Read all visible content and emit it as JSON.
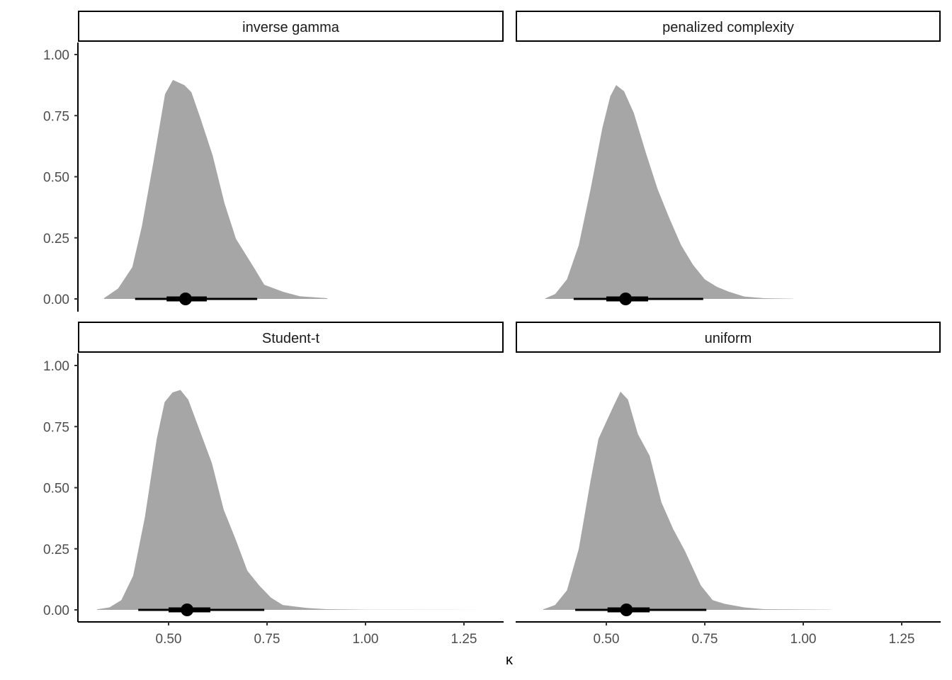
{
  "chart_data": {
    "type": "area",
    "title": "",
    "xlabel": "κ",
    "ylabel": "",
    "xlim": [
      0.27,
      1.35
    ],
    "ylim": [
      0,
      1
    ],
    "x_ticks": [
      "0.50",
      "0.75",
      "1.00",
      "1.25"
    ],
    "x_tick_values": [
      0.5,
      0.75,
      1.0,
      1.25
    ],
    "y_ticks": [
      "0.00",
      "0.25",
      "0.50",
      "0.75",
      "1.00"
    ],
    "y_tick_values": [
      0,
      0.25,
      0.5,
      0.75,
      1.0
    ],
    "grid": false,
    "colors": {
      "density": "#a6a6a6",
      "interval": "#000000"
    },
    "panels": [
      {
        "name": "inverse gamma",
        "density": [
          [
            0.336,
            0.003
          ],
          [
            0.372,
            0.043
          ],
          [
            0.408,
            0.13
          ],
          [
            0.432,
            0.296
          ],
          [
            0.462,
            0.565
          ],
          [
            0.491,
            0.838
          ],
          [
            0.511,
            0.896
          ],
          [
            0.54,
            0.875
          ],
          [
            0.558,
            0.846
          ],
          [
            0.581,
            0.739
          ],
          [
            0.612,
            0.586
          ],
          [
            0.642,
            0.391
          ],
          [
            0.671,
            0.246
          ],
          [
            0.719,
            0.122
          ],
          [
            0.743,
            0.058
          ],
          [
            0.791,
            0.029
          ],
          [
            0.833,
            0.011
          ],
          [
            0.903,
            0.003
          ]
        ],
        "point": 0.543,
        "interval_66": [
          0.495,
          0.597
        ],
        "interval_95": [
          0.415,
          0.725
        ]
      },
      {
        "name": "penalized complexity",
        "density": [
          [
            0.345,
            0.002
          ],
          [
            0.37,
            0.02
          ],
          [
            0.4,
            0.08
          ],
          [
            0.43,
            0.22
          ],
          [
            0.46,
            0.45
          ],
          [
            0.49,
            0.7
          ],
          [
            0.51,
            0.83
          ],
          [
            0.525,
            0.875
          ],
          [
            0.545,
            0.85
          ],
          [
            0.57,
            0.76
          ],
          [
            0.6,
            0.6
          ],
          [
            0.63,
            0.45
          ],
          [
            0.66,
            0.33
          ],
          [
            0.69,
            0.22
          ],
          [
            0.72,
            0.14
          ],
          [
            0.75,
            0.08
          ],
          [
            0.78,
            0.05
          ],
          [
            0.81,
            0.03
          ],
          [
            0.85,
            0.01
          ],
          [
            0.9,
            0.003
          ],
          [
            0.975,
            0.001
          ]
        ],
        "point": 0.549,
        "interval_66": [
          0.5,
          0.606
        ],
        "interval_95": [
          0.417,
          0.746
        ]
      },
      {
        "name": "Student-t",
        "density": [
          [
            0.318,
            0.002
          ],
          [
            0.35,
            0.01
          ],
          [
            0.38,
            0.04
          ],
          [
            0.41,
            0.14
          ],
          [
            0.44,
            0.38
          ],
          [
            0.47,
            0.7
          ],
          [
            0.49,
            0.85
          ],
          [
            0.51,
            0.89
          ],
          [
            0.53,
            0.9
          ],
          [
            0.55,
            0.86
          ],
          [
            0.58,
            0.73
          ],
          [
            0.61,
            0.6
          ],
          [
            0.64,
            0.41
          ],
          [
            0.67,
            0.29
          ],
          [
            0.7,
            0.16
          ],
          [
            0.73,
            0.1
          ],
          [
            0.76,
            0.05
          ],
          [
            0.79,
            0.02
          ],
          [
            0.85,
            0.008
          ],
          [
            0.9,
            0.003
          ],
          [
            1.0,
            0.001
          ],
          [
            1.3,
            0.0
          ]
        ],
        "point": 0.547,
        "interval_66": [
          0.5,
          0.606
        ],
        "interval_95": [
          0.423,
          0.743
        ]
      },
      {
        "name": "uniform",
        "density": [
          [
            0.34,
            0.002
          ],
          [
            0.37,
            0.02
          ],
          [
            0.4,
            0.08
          ],
          [
            0.43,
            0.25
          ],
          [
            0.46,
            0.53
          ],
          [
            0.48,
            0.7
          ],
          [
            0.5,
            0.77
          ],
          [
            0.52,
            0.84
          ],
          [
            0.536,
            0.893
          ],
          [
            0.555,
            0.86
          ],
          [
            0.58,
            0.72
          ],
          [
            0.61,
            0.63
          ],
          [
            0.64,
            0.44
          ],
          [
            0.67,
            0.33
          ],
          [
            0.7,
            0.24
          ],
          [
            0.72,
            0.17
          ],
          [
            0.74,
            0.1
          ],
          [
            0.77,
            0.04
          ],
          [
            0.8,
            0.025
          ],
          [
            0.85,
            0.01
          ],
          [
            0.9,
            0.003
          ],
          [
            1.07,
            0.001
          ]
        ],
        "point": 0.551,
        "interval_66": [
          0.503,
          0.61
        ],
        "interval_95": [
          0.421,
          0.754
        ]
      }
    ]
  }
}
